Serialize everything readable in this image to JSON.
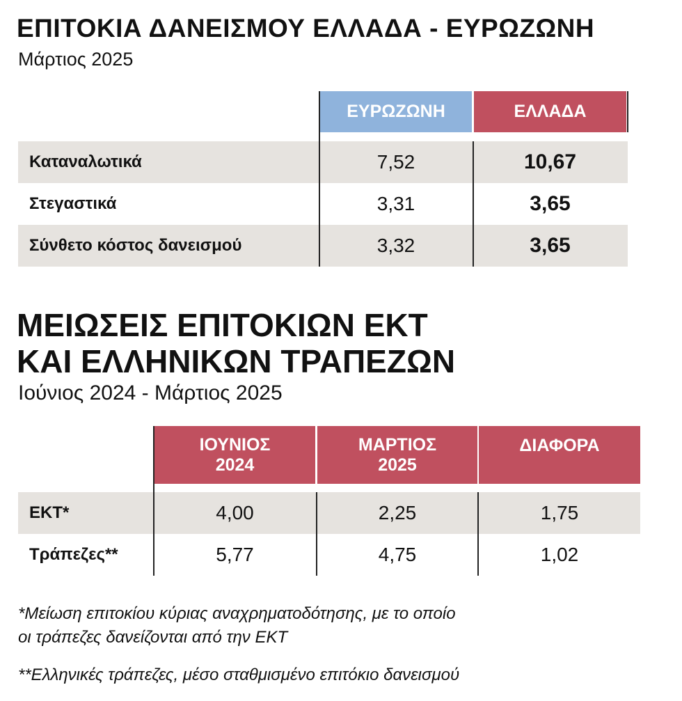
{
  "table1": {
    "title": "ΕΠΙΤΟΚΙΑ ΔΑΝΕΙΣΜΟΥ ΕΛΛΑΔΑ - ΕΥΡΩΖΩΝΗ",
    "subtitle": "Μάρτιος 2025",
    "columns": [
      "ΕΥΡΩΖΩΝΗ",
      "ΕΛΛΑΔΑ"
    ],
    "rows": [
      [
        "Καταναλωτικά",
        "7,52",
        "10,67"
      ],
      [
        "Στεγαστικά",
        "3,31",
        "3,65"
      ],
      [
        "Σύνθετο κόστος δανεισμού",
        "3,32",
        "3,65"
      ]
    ]
  },
  "table2": {
    "title_lines": [
      "ΜΕΙΩΣΕΙΣ ΕΠΙΤΟΚΙΩΝ ΕΚΤ",
      "ΚΑΙ ΕΛΛΗΝΙΚΩΝ ΤΡΑΠΕΖΩΝ"
    ],
    "subtitle": "Ιούνιος 2024 - Μάρτιος 2025",
    "columns": [
      [
        "ΙΟΥΝΙΟΣ",
        "2024"
      ],
      [
        "ΜΑΡΤΙΟΣ",
        "2025"
      ],
      [
        "ΔΙΑΦΟΡΑ"
      ]
    ],
    "rows": [
      [
        "ΕΚΤ*",
        "4,00",
        "2,25",
        "1,75"
      ],
      [
        "Τράπεζες**",
        "5,77",
        "4,75",
        "1,02"
      ]
    ]
  },
  "footnotes": [
    [
      "*Μείωση επιτοκίου κύριας αναχρηματοδότησης, με το οποίο",
      "οι τράπεζες δανείζονται από την ΕΚΤ"
    ],
    [
      "**Ελληνικές τράπεζες, μέσο σταθμισμένο επιτόκιο δανεισμού"
    ]
  ]
}
